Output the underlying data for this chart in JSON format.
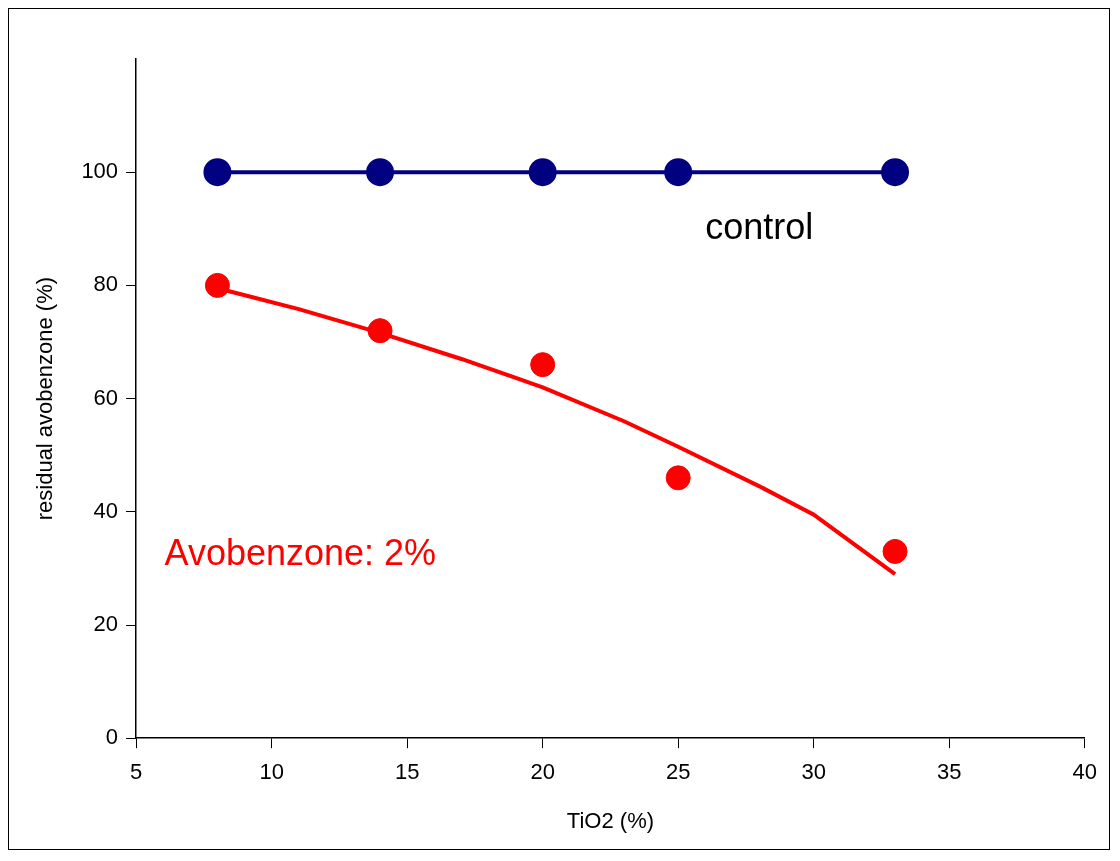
{
  "chart_data": {
    "type": "scatter",
    "xlabel": "TiO2 (%)",
    "ylabel": "residual avobenzone (%)",
    "xlim": [
      5,
      40
    ],
    "xticks": [
      5,
      10,
      15,
      20,
      25,
      30,
      35,
      40
    ],
    "ylim": [
      0,
      120
    ],
    "yticks": [
      0,
      20,
      40,
      60,
      80,
      100
    ],
    "grid": false,
    "legend": false,
    "marker": "circle",
    "series": [
      {
        "name": "control",
        "type": "line",
        "color": "#000080",
        "x": [
          8,
          14,
          20,
          25,
          33
        ],
        "values": [
          100,
          100,
          100,
          100,
          100
        ]
      },
      {
        "name": "Avobenzone: 2%",
        "type": "scatter",
        "color": "#ff0000",
        "x": [
          8,
          14,
          20,
          25,
          33
        ],
        "values": [
          80,
          72,
          66,
          46,
          33
        ]
      },
      {
        "type": "line",
        "marker": "none",
        "color": "#ff0000",
        "x": [
          8,
          11,
          14,
          17,
          20,
          23,
          25,
          28,
          30,
          33
        ],
        "values": [
          79.5,
          75.8,
          71.6,
          67,
          62,
          56,
          51.5,
          44.5,
          39.5,
          29
        ]
      }
    ]
  }
}
